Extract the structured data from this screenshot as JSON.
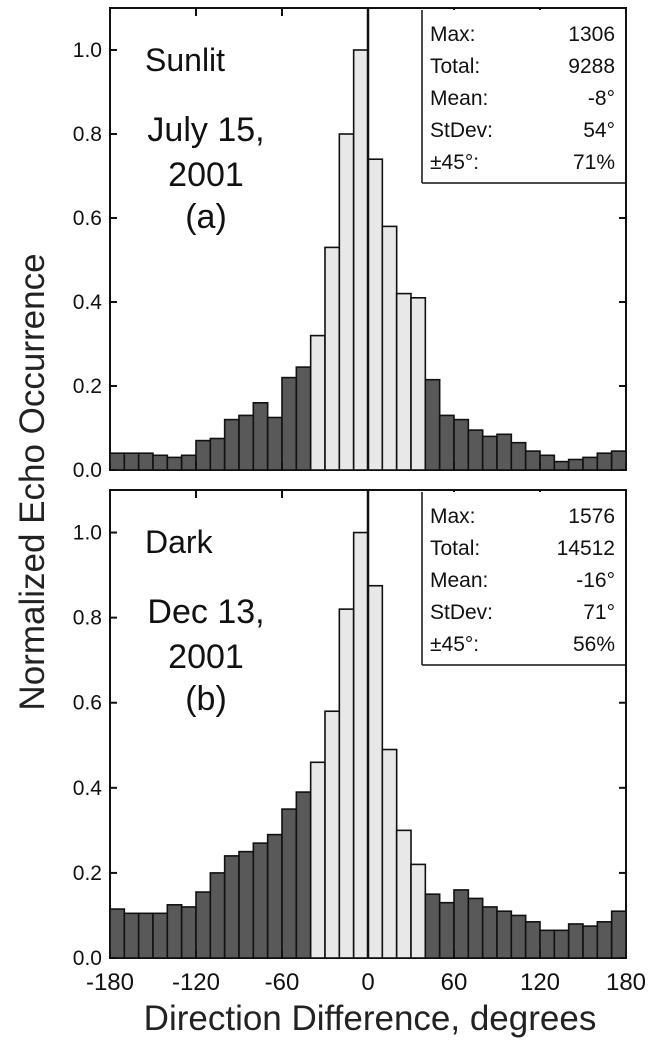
{
  "y_axis_label": "Normalized Echo Occurrence",
  "x_axis_label": "Direction Difference, degrees",
  "x_tick_labels": [
    "-180",
    "-120",
    "-60",
    "0",
    "60",
    "120",
    "180"
  ],
  "y_tick_labels": [
    "0.0",
    "0.2",
    "0.4",
    "0.6",
    "0.8",
    "1.0"
  ],
  "colors": {
    "outer_bar": "#595959",
    "inner_bar": "#e8e8e8",
    "edge": "#111111"
  },
  "chart_data": [
    {
      "type": "bar",
      "panel": "a",
      "title": "Sunlit",
      "date_lines": [
        "July 15,",
        "2001"
      ],
      "panel_label": "(a)",
      "xlim": [
        -180,
        180
      ],
      "ylim": [
        0,
        1.1
      ],
      "bin_width": 10,
      "x": [
        -175,
        -165,
        -155,
        -145,
        -135,
        -125,
        -115,
        -105,
        -95,
        -85,
        -75,
        -65,
        -55,
        -45,
        -35,
        -25,
        -15,
        -5,
        5,
        15,
        25,
        35,
        45,
        55,
        65,
        75,
        85,
        95,
        105,
        115,
        125,
        135,
        145,
        155,
        165,
        175
      ],
      "values": [
        0.04,
        0.04,
        0.04,
        0.035,
        0.03,
        0.035,
        0.07,
        0.075,
        0.12,
        0.13,
        0.16,
        0.125,
        0.22,
        0.245,
        0.32,
        0.53,
        0.8,
        1.0,
        0.74,
        0.58,
        0.42,
        0.41,
        0.215,
        0.13,
        0.12,
        0.095,
        0.08,
        0.085,
        0.065,
        0.045,
        0.035,
        0.02,
        0.025,
        0.03,
        0.04,
        0.045
      ],
      "stats": [
        {
          "label": "Max:",
          "value": "1306"
        },
        {
          "label": "Total:",
          "value": "9288"
        },
        {
          "label": "Mean:",
          "value": "-8°"
        },
        {
          "label": "StDev:",
          "value": "54°"
        },
        {
          "label": "±45°:",
          "value": "71%"
        }
      ]
    },
    {
      "type": "bar",
      "panel": "b",
      "title": "Dark",
      "date_lines": [
        "Dec 13,",
        "2001"
      ],
      "panel_label": "(b)",
      "xlim": [
        -180,
        180
      ],
      "ylim": [
        0,
        1.1
      ],
      "bin_width": 10,
      "x": [
        -175,
        -165,
        -155,
        -145,
        -135,
        -125,
        -115,
        -105,
        -95,
        -85,
        -75,
        -65,
        -55,
        -45,
        -35,
        -25,
        -15,
        -5,
        5,
        15,
        25,
        35,
        45,
        55,
        65,
        75,
        85,
        95,
        105,
        115,
        125,
        135,
        145,
        155,
        165,
        175
      ],
      "values": [
        0.115,
        0.105,
        0.105,
        0.105,
        0.125,
        0.12,
        0.155,
        0.2,
        0.24,
        0.25,
        0.27,
        0.29,
        0.35,
        0.39,
        0.46,
        0.58,
        0.82,
        1.0,
        0.875,
        0.49,
        0.3,
        0.22,
        0.15,
        0.13,
        0.16,
        0.14,
        0.12,
        0.11,
        0.1,
        0.085,
        0.065,
        0.065,
        0.08,
        0.075,
        0.085,
        0.11
      ],
      "stats": [
        {
          "label": "Max:",
          "value": "1576"
        },
        {
          "label": "Total:",
          "value": "14512"
        },
        {
          "label": "Mean:",
          "value": "-16°"
        },
        {
          "label": "StDev:",
          "value": "71°"
        },
        {
          "label": "±45°:",
          "value": "56%"
        }
      ]
    }
  ]
}
